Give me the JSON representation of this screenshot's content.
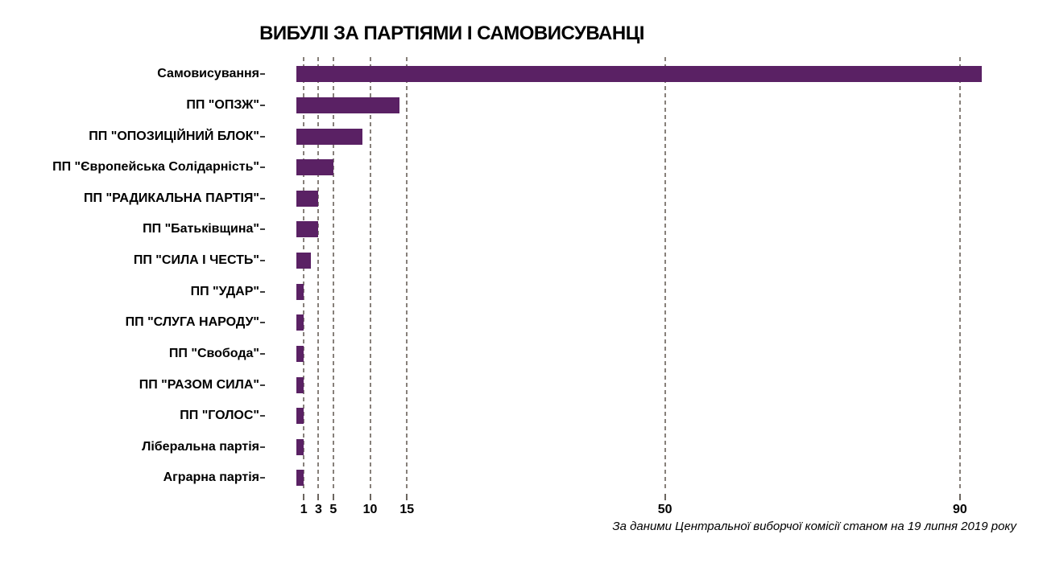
{
  "chart_data": {
    "type": "bar",
    "orientation": "horizontal",
    "title": "ВИБУЛІ ЗА ПАРТІЯМИ І САМОВИСУВАНЦІ",
    "source_note": "За даними Центральної виборчої комісії станом на 19 липня 2019 року",
    "categories": [
      "Самовисування",
      "ПП \"ОПЗЖ\"",
      "ПП \"ОПОЗИЦІЙНИЙ БЛОК\"",
      "ПП \"Європейська Солідарність\"",
      "ПП \"РАДИКАЛЬНА ПАРТІЯ\"",
      "ПП \"Батьківщина\"",
      "ПП \"СИЛА І ЧЕСТЬ\"",
      "ПП \"УДАР\"",
      "ПП \"СЛУГА НАРОДУ\"",
      "ПП \"Свобода\"",
      "ПП \"РАЗОМ СИЛА\"",
      "ПП \"ГОЛОС\"",
      "Ліберальна партія",
      "Аграрна партія"
    ],
    "values": [
      93,
      14,
      9,
      5,
      3,
      3,
      2,
      1,
      1,
      1,
      1,
      1,
      1,
      1
    ],
    "x_ticks": [
      1,
      3,
      5,
      10,
      15,
      50,
      90
    ],
    "xlim": [
      0,
      97
    ],
    "xlabel": "",
    "ylabel": "",
    "legend": "none",
    "grid": "vertical-dashed",
    "bar_color": "#5a2164",
    "gridline_color": "#87807a",
    "tick_color": "#3f3f3f",
    "text_color": "#000000",
    "background_color": "#ffffff"
  }
}
